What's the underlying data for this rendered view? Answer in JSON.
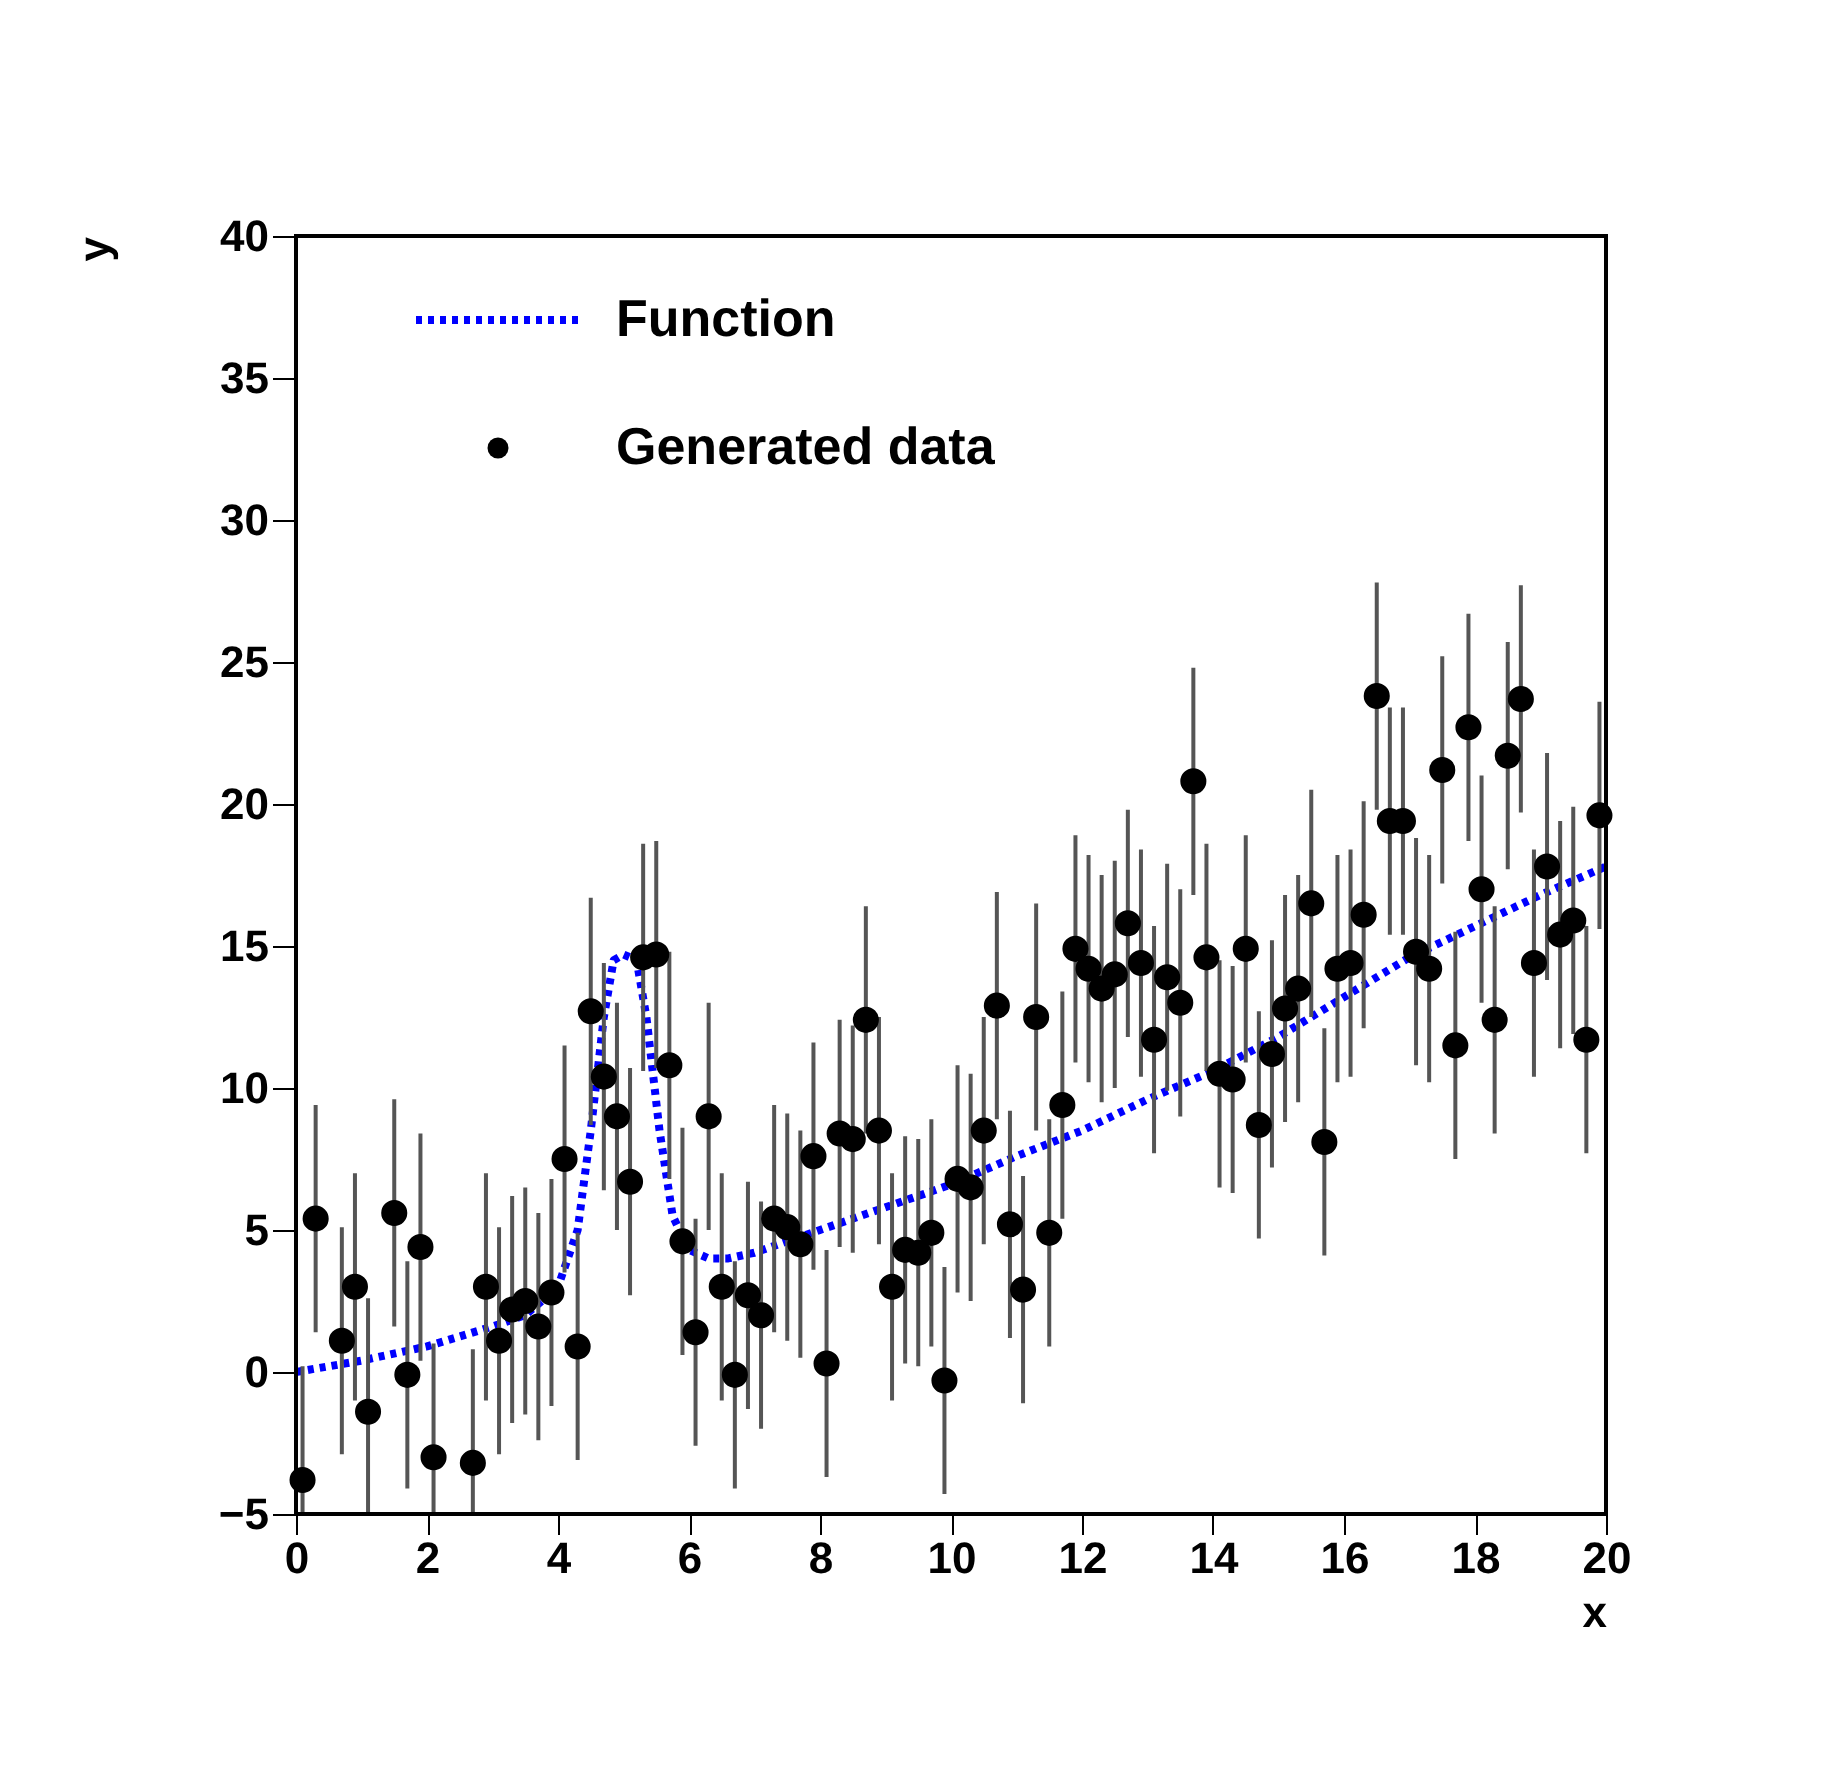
{
  "chart_data": {
    "type": "scatter",
    "xlabel": "x",
    "ylabel": "y",
    "xlim": [
      0,
      20
    ],
    "ylim": [
      -5,
      40
    ],
    "xticks": [
      0,
      2,
      4,
      6,
      8,
      10,
      12,
      14,
      16,
      18,
      20
    ],
    "yticks": [
      -5,
      0,
      5,
      10,
      15,
      20,
      25,
      30,
      35,
      40
    ],
    "grid": false,
    "legend": "top left",
    "series": [
      {
        "name": "Function",
        "type": "line",
        "color": "#0000ff",
        "line_style": "dotted",
        "marker": "none",
        "x": [
          0,
          1,
          2,
          3,
          3.5,
          4,
          4.3,
          4.5,
          4.7,
          4.85,
          5.0,
          5.2,
          5.35,
          5.55,
          5.75,
          6.0,
          6.3,
          6.6,
          7,
          8,
          9,
          10,
          11,
          12,
          13,
          14,
          15,
          16,
          17,
          18,
          19,
          20
        ],
        "values": [
          0,
          0.4,
          0.9,
          1.6,
          2.0,
          3.0,
          5,
          8.5,
          12.5,
          14.5,
          14.7,
          14.5,
          12.5,
          8.5,
          5.5,
          4.3,
          4.0,
          4.0,
          4.2,
          5.0,
          5.8,
          6.6,
          7.6,
          8.5,
          9.6,
          10.6,
          11.8,
          13.2,
          14.6,
          15.7,
          16.8,
          17.8
        ]
      },
      {
        "name": "Generated data",
        "color": "#000000",
        "marker": "circle",
        "x": [
          0.1,
          0.3,
          0.7,
          0.9,
          1.1,
          1.5,
          1.7,
          1.9,
          2.1,
          2.7,
          2.9,
          3.1,
          3.3,
          3.5,
          3.7,
          3.9,
          4.1,
          4.3,
          4.5,
          4.7,
          4.9,
          5.1,
          5.3,
          5.5,
          5.7,
          5.9,
          6.1,
          6.3,
          6.5,
          6.7,
          6.9,
          7.1,
          7.3,
          7.5,
          7.7,
          7.9,
          8.1,
          8.3,
          8.5,
          8.7,
          8.9,
          9.1,
          9.3,
          9.5,
          9.7,
          9.9,
          10.1,
          10.3,
          10.5,
          10.7,
          10.9,
          11.1,
          11.3,
          11.5,
          11.7,
          11.9,
          12.1,
          12.3,
          12.5,
          12.7,
          12.9,
          13.1,
          13.3,
          13.5,
          13.7,
          13.9,
          14.1,
          14.3,
          14.5,
          14.7,
          14.9,
          15.1,
          15.3,
          15.5,
          15.7,
          15.9,
          16.1,
          16.3,
          16.5,
          16.7,
          16.9,
          17.1,
          17.3,
          17.5,
          17.7,
          17.9,
          18.1,
          18.3,
          18.5,
          18.7,
          18.9,
          19.1,
          19.3,
          19.5,
          19.7,
          19.9
        ],
        "values": [
          -3.8,
          5.4,
          1.1,
          3.0,
          -1.4,
          5.6,
          -0.1,
          4.4,
          -3.0,
          -3.2,
          3.0,
          1.1,
          2.2,
          2.5,
          1.6,
          2.8,
          7.5,
          0.9,
          12.7,
          10.4,
          9.0,
          6.7,
          14.6,
          14.7,
          10.8,
          4.6,
          1.4,
          9.0,
          3.0,
          -0.1,
          2.7,
          2.0,
          5.4,
          5.1,
          4.5,
          7.6,
          0.3,
          8.4,
          8.2,
          12.4,
          8.5,
          3.0,
          4.3,
          4.2,
          4.9,
          -0.3,
          6.8,
          6.5,
          8.5,
          12.9,
          5.2,
          2.9,
          12.5,
          4.9,
          9.4,
          14.9,
          14.2,
          13.5,
          14.0,
          15.8,
          14.4,
          11.7,
          13.9,
          13.0,
          20.8,
          14.6,
          10.5,
          10.3,
          14.9,
          8.7,
          11.2,
          12.8,
          13.5,
          16.5,
          8.1,
          14.2,
          14.4,
          16.1,
          23.8,
          19.4,
          19.4,
          14.8,
          14.2,
          21.2,
          11.5,
          22.7,
          17.0,
          12.4,
          21.7,
          23.7,
          14.4,
          17.8,
          15.4,
          15.9,
          11.7,
          19.6
        ],
        "errors": [
          [
            -5,
            0.2
          ],
          4,
          4,
          4,
          [
            -5,
            2.6
          ],
          4,
          4,
          4,
          [
            -5,
            1.0
          ],
          [
            -5,
            0.8
          ],
          4,
          4,
          4,
          4,
          4,
          4,
          4,
          4,
          4,
          4,
          4,
          4,
          4,
          4,
          4,
          4,
          4,
          4,
          4,
          4,
          4,
          4,
          4,
          4,
          4,
          4,
          4,
          4,
          4,
          4,
          4,
          4,
          4,
          4,
          4,
          4,
          4,
          4,
          4,
          4,
          4,
          4,
          4,
          4,
          4,
          4,
          4,
          4,
          4,
          4,
          4,
          4,
          4,
          4,
          4,
          4,
          4,
          4,
          4,
          4,
          4,
          4,
          4,
          4,
          4,
          4,
          4,
          4,
          4,
          4,
          4,
          4,
          4,
          4,
          4,
          4,
          4,
          4,
          4,
          4,
          4,
          4,
          4,
          4,
          4,
          4
        ]
      }
    ]
  }
}
